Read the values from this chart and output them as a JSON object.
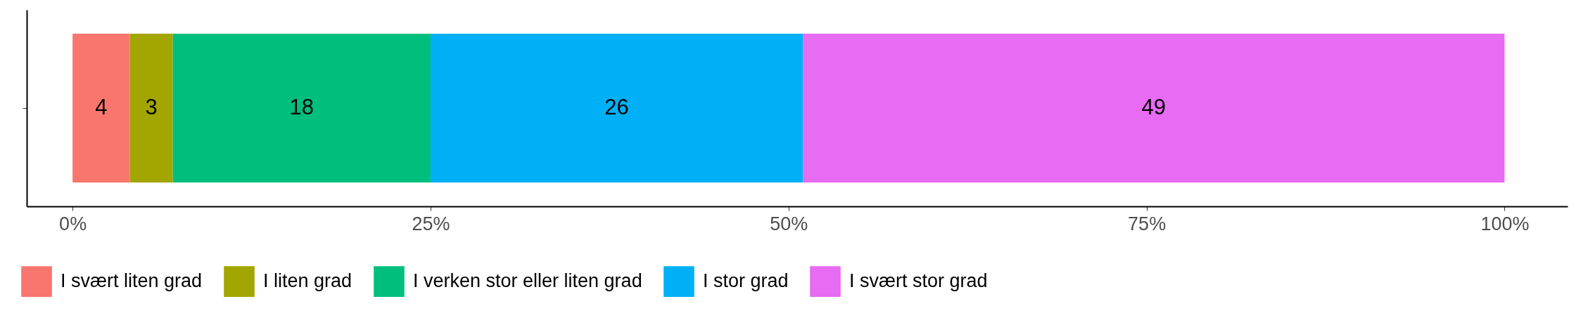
{
  "chart_data": {
    "type": "bar",
    "orientation": "horizontal",
    "stacked": true,
    "categories": [
      null
    ],
    "series": [
      {
        "name": "I svært liten grad",
        "color": "#f8766d",
        "values": [
          4
        ]
      },
      {
        "name": "I liten grad",
        "color": "#a3a500",
        "values": [
          3
        ]
      },
      {
        "name": "I verken stor eller liten grad",
        "color": "#00bf7d",
        "values": [
          18
        ]
      },
      {
        "name": "I stor grad",
        "color": "#00b0f6",
        "values": [
          26
        ]
      },
      {
        "name": "I svært stor grad",
        "color": "#e76bf3",
        "values": [
          49
        ]
      }
    ],
    "xlim": [
      -3.2,
      104.4
    ],
    "xticks": [
      {
        "value": 0,
        "label": "0%"
      },
      {
        "value": 25,
        "label": "25%"
      },
      {
        "value": 50,
        "label": "50%"
      },
      {
        "value": 75,
        "label": "75%"
      },
      {
        "value": 100,
        "label": "100%"
      }
    ],
    "data_labels": true,
    "grid": false,
    "legend": "bottom",
    "tick_labels": "x"
  }
}
